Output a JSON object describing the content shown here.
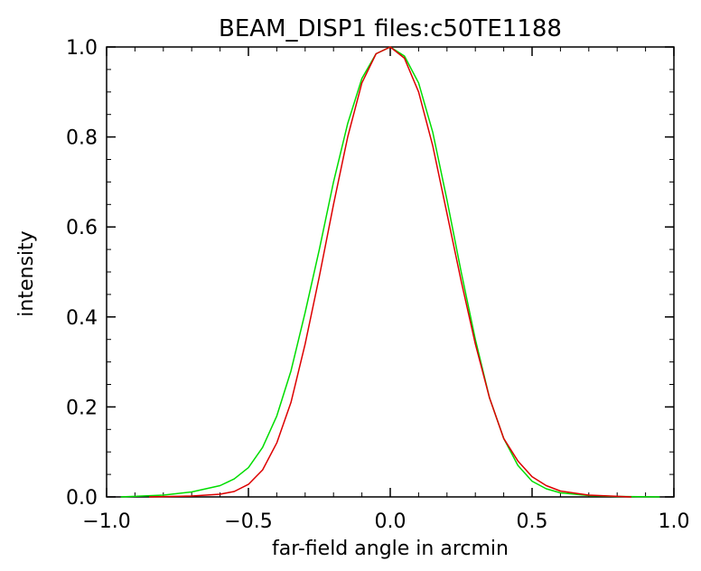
{
  "chart_data": {
    "type": "line",
    "title": "BEAM_DISP1  files:c50TE1188",
    "xlabel": "far-field angle in arcmin",
    "ylabel": "intensity",
    "xlim": [
      -1.0,
      1.0
    ],
    "ylim": [
      0.0,
      1.0
    ],
    "x_ticks": [
      "−1.0",
      "−0.5",
      "0.0",
      "0.5",
      "1.0"
    ],
    "y_ticks": [
      "0.0",
      "0.2",
      "0.4",
      "0.6",
      "0.8",
      "1.0"
    ],
    "grid": false,
    "series": [
      {
        "color": "#00dd00",
        "x": [
          -0.95,
          -0.8,
          -0.7,
          -0.6,
          -0.55,
          -0.5,
          -0.45,
          -0.4,
          -0.35,
          -0.3,
          -0.25,
          -0.2,
          -0.15,
          -0.1,
          -0.05,
          0.0,
          0.05,
          0.1,
          0.15,
          0.2,
          0.25,
          0.3,
          0.35,
          0.4,
          0.45,
          0.5,
          0.55,
          0.6,
          0.7,
          0.8,
          0.95
        ],
        "y": [
          0.0,
          0.004,
          0.011,
          0.025,
          0.04,
          0.065,
          0.11,
          0.18,
          0.28,
          0.41,
          0.55,
          0.7,
          0.83,
          0.93,
          0.985,
          1.0,
          0.98,
          0.92,
          0.81,
          0.66,
          0.5,
          0.35,
          0.22,
          0.13,
          0.07,
          0.035,
          0.018,
          0.009,
          0.003,
          0.001,
          0.0
        ]
      },
      {
        "color": "#dd0000",
        "x": [
          -0.85,
          -0.7,
          -0.6,
          -0.55,
          -0.5,
          -0.45,
          -0.4,
          -0.35,
          -0.3,
          -0.25,
          -0.2,
          -0.15,
          -0.1,
          -0.05,
          0.0,
          0.05,
          0.1,
          0.15,
          0.2,
          0.25,
          0.3,
          0.35,
          0.4,
          0.45,
          0.5,
          0.55,
          0.6,
          0.7,
          0.85
        ],
        "y": [
          0.0,
          0.002,
          0.006,
          0.012,
          0.028,
          0.06,
          0.12,
          0.21,
          0.34,
          0.49,
          0.65,
          0.8,
          0.92,
          0.985,
          1.0,
          0.975,
          0.9,
          0.78,
          0.63,
          0.48,
          0.34,
          0.22,
          0.13,
          0.08,
          0.045,
          0.025,
          0.013,
          0.004,
          0.0
        ]
      }
    ]
  }
}
